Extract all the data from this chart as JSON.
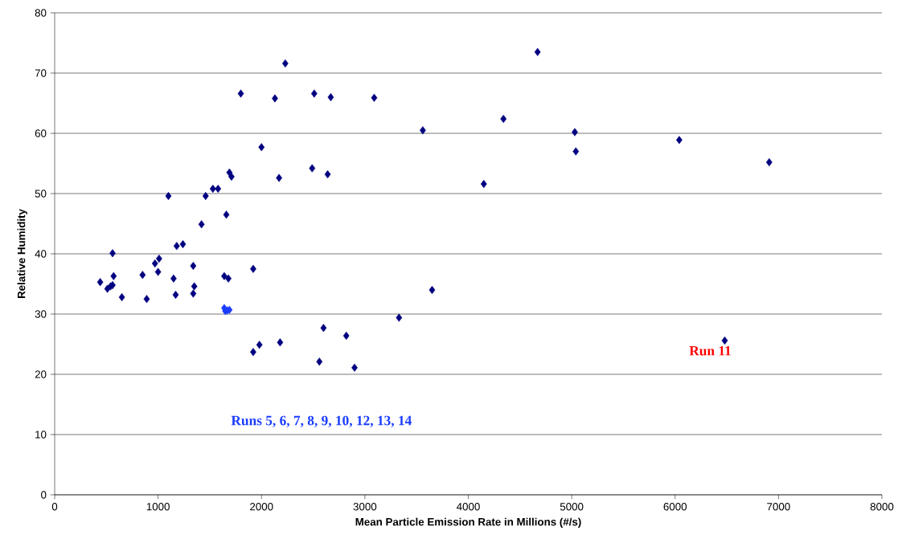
{
  "chart_data": {
    "type": "scatter",
    "xlabel": "Mean Particle Emission Rate in Millions (#/s)",
    "ylabel": "Relative Humidity",
    "xlim": [
      0,
      8000
    ],
    "ylim": [
      0,
      80
    ],
    "xticks": [
      0,
      1000,
      2000,
      3000,
      4000,
      5000,
      6000,
      7000,
      8000
    ],
    "yticks": [
      0,
      10,
      20,
      30,
      40,
      50,
      60,
      70,
      80
    ],
    "grid": "y",
    "marker": "diamond",
    "series": [
      {
        "color": "#000080",
        "x": [
          440,
          510,
          540,
          560,
          570,
          560,
          650,
          850,
          890,
          970,
          1010,
          1000,
          1100,
          1150,
          1170,
          1180,
          1240,
          1340,
          1340,
          1350,
          1420,
          1460,
          1530,
          1580,
          1640,
          1660,
          1680,
          1690,
          1710,
          1800,
          1920,
          1920,
          1980,
          2000,
          2130,
          2170,
          2180,
          2230,
          2490,
          2510,
          2560,
          2600,
          2640,
          2670,
          2820,
          2900,
          3090,
          3330,
          3560,
          3650,
          4150,
          4340,
          4670,
          5030,
          5040,
          6040,
          6480,
          6910
        ],
        "values": [
          35.3,
          34.2,
          34.6,
          34.8,
          36.3,
          40.1,
          32.8,
          36.5,
          32.5,
          38.4,
          39.2,
          37,
          49.6,
          35.9,
          33.2,
          41.3,
          41.6,
          33.4,
          38,
          34.6,
          44.9,
          49.6,
          50.8,
          50.8,
          36.3,
          46.5,
          35.9,
          53.5,
          52.8,
          66.6,
          37.5,
          23.7,
          24.9,
          57.7,
          65.8,
          52.6,
          25.3,
          71.6,
          54.2,
          66.6,
          22.1,
          27.7,
          53.2,
          66,
          26.4,
          21.1,
          65.9,
          29.4,
          60.5,
          34,
          51.6,
          62.4,
          73.5,
          60.2,
          57,
          58.9,
          25.6,
          55.2
        ]
      },
      {
        "color": "#1a3cff",
        "x": [
          1640,
          1650,
          1670,
          1690
        ],
        "values": [
          31,
          30.5,
          30.6,
          30.7
        ]
      }
    ],
    "annotations": [
      "Runs 5, 6, 7, 8, 9, 10, 12, 13, 14",
      {
        "text": "Run 11",
        "x": 6480,
        "y": 25.6
      }
    ]
  }
}
